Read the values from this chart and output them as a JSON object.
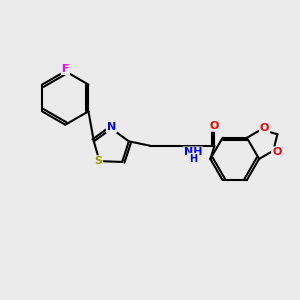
{
  "background_color": "#ebebeb",
  "bond_color": "#000000",
  "atom_colors": {
    "F": "#ff00ff",
    "S": "#999900",
    "N": "#0000ff",
    "O": "#ff0000",
    "C": "#000000"
  }
}
